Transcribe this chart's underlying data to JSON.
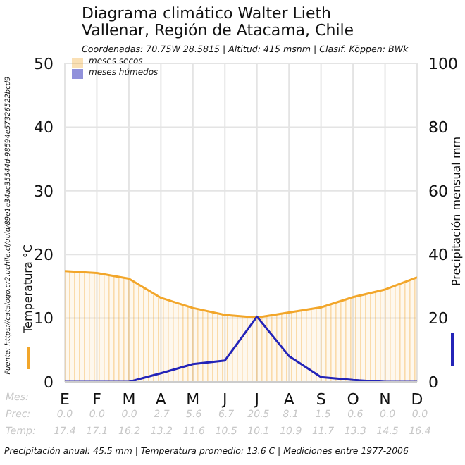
{
  "chart_data": {
    "type": "line",
    "title": "Diagrama climático Walter Lieth",
    "subtitle": "Vallenar, Región de Atacama, Chile",
    "annotations": [
      "Coordenadas: 70.75W 28.5815 | Altitud: 415 msnm | Clasif. Köppen: BWk",
      "Precipitación anual: 45.5 mm | Temperatura promedio: 13.6 C | Mediciones entre 1977-2006",
      "Fuente: https://catalogo.cr2.uchile.cl/uuid/89e1e34ac35544d-98594e57326522bcd9",
      "Mes:",
      "Prec:",
      "Temp:",
      "meses secos",
      "meses húmedos"
    ],
    "categories": [
      "E",
      "F",
      "M",
      "A",
      "M",
      "J",
      "J",
      "A",
      "S",
      "O",
      "N",
      "D"
    ],
    "series": [
      {
        "type": "area",
        "color": "#f2a62a",
        "values": [
          17.4,
          17.1,
          16.2,
          13.2,
          11.6,
          10.5,
          10.1,
          10.9,
          11.7,
          13.3,
          14.5,
          16.4
        ],
        "value_labels": [
          "17.4",
          "17.1",
          "16.2",
          "13.2",
          "11.6",
          "10.5",
          "10.1",
          "10.9",
          "11.7",
          "13.3",
          "14.5",
          "16.4"
        ]
      },
      {
        "axis": "y2",
        "color": "#2424b8",
        "values": [
          0,
          0,
          0,
          2.7,
          5.6,
          6.7,
          20.5,
          8.1,
          1.5,
          0.6,
          0,
          0
        ],
        "value_labels": [
          "0.0",
          "0.0",
          "0.0",
          "2.7",
          "5.6",
          "6.7",
          "20.5",
          "8.1",
          "1.5",
          "0.6",
          "0.0",
          "0.0"
        ]
      }
    ],
    "ylabel": "Temperatura °C",
    "y2label": "Precipitación mensual mm",
    "ylim": [
      0,
      50
    ],
    "yticks": [
      0,
      10,
      20,
      30,
      40,
      50
    ],
    "y2lim": [
      0,
      100
    ],
    "y2ticks": [
      0,
      20,
      40,
      60,
      80,
      100
    ],
    "grid": true,
    "marker": "none",
    "line_style": "solid"
  }
}
